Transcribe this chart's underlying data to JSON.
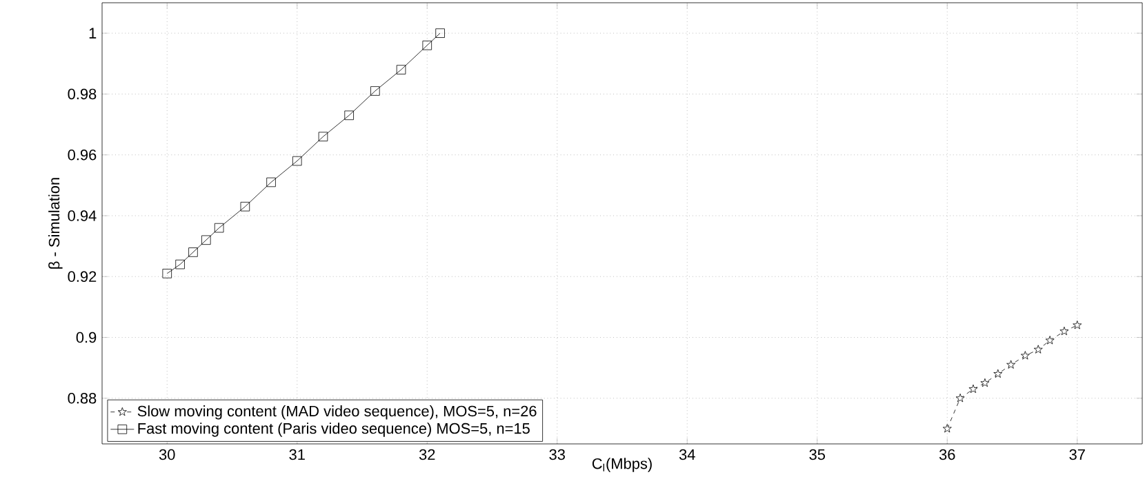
{
  "chart_data": {
    "type": "line",
    "xlabel": "C$_{l}$(Mbps)",
    "ylabel": "β - Simulation",
    "xlim": [
      29.5,
      37.5
    ],
    "ylim": [
      0.865,
      1.01
    ],
    "xticks": [
      30,
      31,
      32,
      33,
      34,
      35,
      36,
      37
    ],
    "yticks": [
      0.88,
      0.9,
      0.92,
      0.94,
      0.96,
      0.98,
      1
    ],
    "grid": true,
    "legend": "bottom left",
    "series": [
      {
        "name": "Slow moving content (MAD video sequence), MOS=5, n=26",
        "color": "#000000",
        "marker": "star",
        "line_style": "dashed",
        "x": [
          36.0,
          36.1,
          36.2,
          36.29,
          36.39,
          36.49,
          36.6,
          36.7,
          36.79,
          36.9,
          37.0
        ],
        "values": [
          0.87,
          0.88,
          0.883,
          0.885,
          0.888,
          0.891,
          0.894,
          0.896,
          0.899,
          0.902,
          0.904
        ]
      },
      {
        "name": "Fast moving content (Paris video sequence) MOS=5, n=15",
        "color": "#000000",
        "marker": "square",
        "line_style": "solid",
        "x": [
          30.0,
          30.1,
          30.2,
          30.3,
          30.4,
          30.6,
          30.8,
          31.0,
          31.2,
          31.4,
          31.6,
          31.8,
          32.0,
          32.1
        ],
        "values": [
          0.921,
          0.924,
          0.928,
          0.932,
          0.936,
          0.943,
          0.951,
          0.958,
          0.966,
          0.973,
          0.981,
          0.988,
          0.996,
          1.0
        ]
      }
    ]
  }
}
